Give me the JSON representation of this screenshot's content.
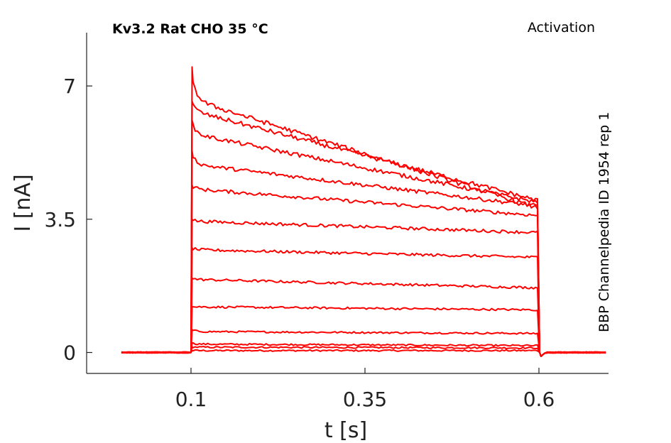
{
  "chart_data": {
    "type": "line",
    "title": "Kv3.2  Rat  CHO  35 °C",
    "annotation_right": "Activation",
    "annotation_vertical": "BBP Channelpedia ID 1954 rep 1",
    "xlabel": "t [s]",
    "ylabel": "I [nA]",
    "xlim": [
      -0.05,
      0.7
    ],
    "ylim": [
      -0.55,
      8.4
    ],
    "x_ticks": [
      0.1,
      0.35,
      0.6
    ],
    "x_tick_labels": [
      "0.1",
      "0.35",
      "0.6"
    ],
    "y_ticks": [
      0,
      3.5,
      7
    ],
    "y_tick_labels": [
      "0",
      "3.5",
      "7"
    ],
    "grid": false,
    "series_color": "#ff0000",
    "pulse_start_s": 0.1,
    "pulse_end_s": 0.6,
    "trace_start_s": 0.0,
    "trace_end_s": 0.7,
    "series": [
      {
        "peak": 0.05,
        "early": 0.05,
        "end": 0.05
      },
      {
        "peak": 0.15,
        "early": 0.14,
        "end": 0.12
      },
      {
        "peak": 0.25,
        "early": 0.22,
        "end": 0.18
      },
      {
        "peak": 0.6,
        "early": 0.55,
        "end": 0.5
      },
      {
        "peak": 1.2,
        "early": 1.2,
        "end": 1.12
      },
      {
        "peak": 1.95,
        "early": 1.92,
        "end": 1.7
      },
      {
        "peak": 2.75,
        "early": 2.7,
        "end": 2.5
      },
      {
        "peak": 3.5,
        "early": 3.45,
        "end": 3.15
      },
      {
        "peak": 4.4,
        "early": 4.3,
        "end": 3.6
      },
      {
        "peak": 5.3,
        "early": 4.95,
        "end": 3.85
      },
      {
        "peak": 6.1,
        "early": 5.75,
        "end": 3.95
      },
      {
        "peak": 6.6,
        "early": 6.35,
        "end": 4.0
      },
      {
        "peak": 7.5,
        "early": 6.65,
        "end": 3.8
      }
    ]
  }
}
